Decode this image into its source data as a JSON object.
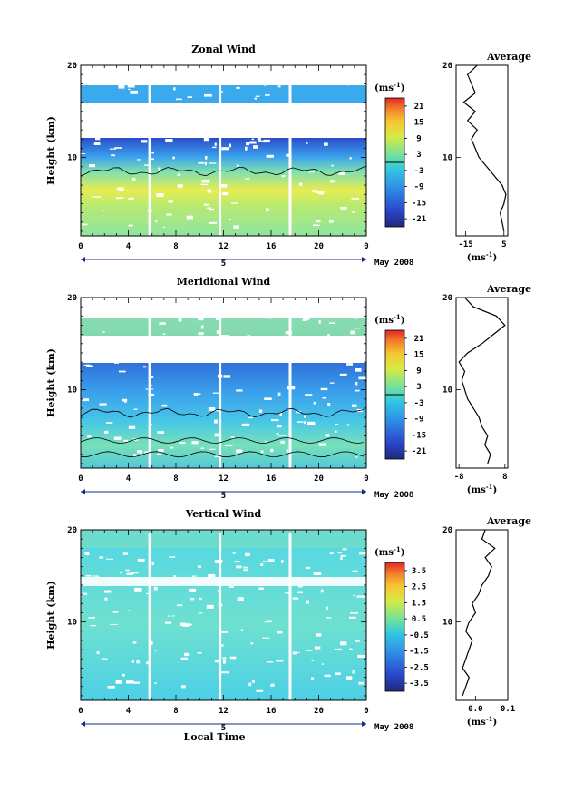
{
  "date_label": "May 2008",
  "xlabel": "Local Time",
  "day_label": "5",
  "colorbar_unit": "(ms",
  "colorbar_unit_sup": "-1",
  "colorbar_unit_close": ")",
  "average_title": "Average",
  "ylabel": "Height (km)",
  "chart_data": [
    {
      "type": "heatmap",
      "title": "Zonal Wind",
      "xlabel": "",
      "ylabel": "Height (km)",
      "xlim": [
        0,
        24
      ],
      "ylim": [
        1.5,
        20
      ],
      "x_ticks": [
        "0",
        "4",
        "8",
        "12",
        "16",
        "20",
        "0"
      ],
      "y_ticks": [
        "10",
        "20"
      ],
      "colorbar": {
        "ticks": [
          "21",
          "15",
          "9",
          "3",
          "-3",
          "-9",
          "-15",
          "-21"
        ],
        "zero_line_at": 0,
        "range": [
          -24,
          24
        ]
      },
      "profile_data": {
        "type": "line",
        "title": "Average",
        "xlim": [
          -20,
          7
        ],
        "x_ticks": [
          "-15",
          "5"
        ],
        "y_ticks": [
          "10",
          "20"
        ],
        "points": [
          [
            5,
            2
          ],
          [
            4,
            3
          ],
          [
            3,
            4
          ],
          [
            5,
            5
          ],
          [
            6,
            6
          ],
          [
            4,
            7
          ],
          [
            0,
            8
          ],
          [
            -4,
            9
          ],
          [
            -8,
            10
          ],
          [
            -10,
            11
          ],
          [
            -12,
            12
          ],
          [
            -9,
            13
          ],
          [
            -14,
            14
          ],
          [
            -10,
            15
          ],
          [
            -16,
            16
          ],
          [
            -10,
            17
          ],
          [
            -12,
            18
          ],
          [
            -14,
            19
          ],
          [
            -9,
            20
          ]
        ]
      }
    },
    {
      "type": "heatmap",
      "title": "Meridional Wind",
      "xlabel": "",
      "ylabel": "Height (km)",
      "xlim": [
        0,
        24
      ],
      "ylim": [
        1.5,
        20
      ],
      "x_ticks": [
        "0",
        "4",
        "8",
        "12",
        "16",
        "20",
        "0"
      ],
      "y_ticks": [
        "10",
        "20"
      ],
      "colorbar": {
        "ticks": [
          "21",
          "15",
          "9",
          "3",
          "-3",
          "-9",
          "-15",
          "-21"
        ],
        "zero_line_at": 0,
        "range": [
          -24,
          24
        ]
      },
      "profile_data": {
        "type": "line",
        "title": "Average",
        "xlim": [
          -9,
          9
        ],
        "x_ticks": [
          "-8",
          "8"
        ],
        "y_ticks": [
          "10",
          "20"
        ],
        "points": [
          [
            2,
            2
          ],
          [
            3,
            3
          ],
          [
            1,
            4
          ],
          [
            2,
            5
          ],
          [
            0,
            6
          ],
          [
            -1,
            7
          ],
          [
            -3,
            8
          ],
          [
            -5,
            9
          ],
          [
            -6,
            10
          ],
          [
            -7,
            11
          ],
          [
            -6,
            12
          ],
          [
            -8,
            13
          ],
          [
            -5,
            14
          ],
          [
            0,
            15
          ],
          [
            4,
            16
          ],
          [
            8,
            17
          ],
          [
            5,
            18
          ],
          [
            -3,
            19
          ],
          [
            -6,
            20
          ]
        ]
      }
    },
    {
      "type": "heatmap",
      "title": "Vertical Wind",
      "xlabel": "Local Time",
      "ylabel": "Height (km)",
      "xlim": [
        0,
        24
      ],
      "ylim": [
        1.5,
        20
      ],
      "x_ticks": [
        "0",
        "4",
        "8",
        "12",
        "16",
        "20",
        "0"
      ],
      "y_ticks": [
        "10",
        "20"
      ],
      "colorbar": {
        "ticks": [
          "3.5",
          "2.5",
          "1.5",
          "0.5",
          "-0.5",
          "-1.5",
          "-2.5",
          "-3.5"
        ],
        "range": [
          -4,
          4
        ]
      },
      "profile_data": {
        "type": "line",
        "title": "Average",
        "xlim": [
          -0.06,
          0.1
        ],
        "x_ticks": [
          "0.0",
          "0.1"
        ],
        "y_ticks": [
          "10",
          "20"
        ],
        "points": [
          [
            -0.04,
            2
          ],
          [
            -0.03,
            3
          ],
          [
            -0.02,
            4
          ],
          [
            -0.04,
            5
          ],
          [
            -0.03,
            6
          ],
          [
            -0.02,
            7
          ],
          [
            -0.01,
            8
          ],
          [
            -0.03,
            9
          ],
          [
            -0.02,
            10
          ],
          [
            0.0,
            11
          ],
          [
            -0.01,
            12
          ],
          [
            0.01,
            13
          ],
          [
            0.02,
            14
          ],
          [
            0.04,
            15
          ],
          [
            0.05,
            16
          ],
          [
            0.03,
            17
          ],
          [
            0.06,
            18
          ],
          [
            0.02,
            19
          ],
          [
            0.03,
            20
          ]
        ]
      }
    }
  ]
}
